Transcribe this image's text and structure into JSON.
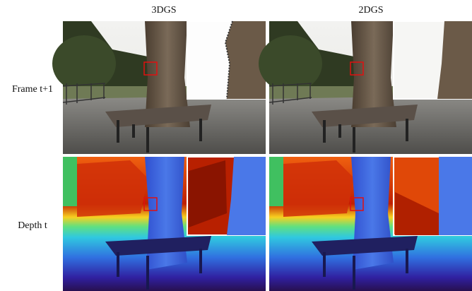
{
  "columns": [
    "3DGS",
    "2DGS"
  ],
  "rows": [
    "Frame t+1",
    "Depth t"
  ]
}
